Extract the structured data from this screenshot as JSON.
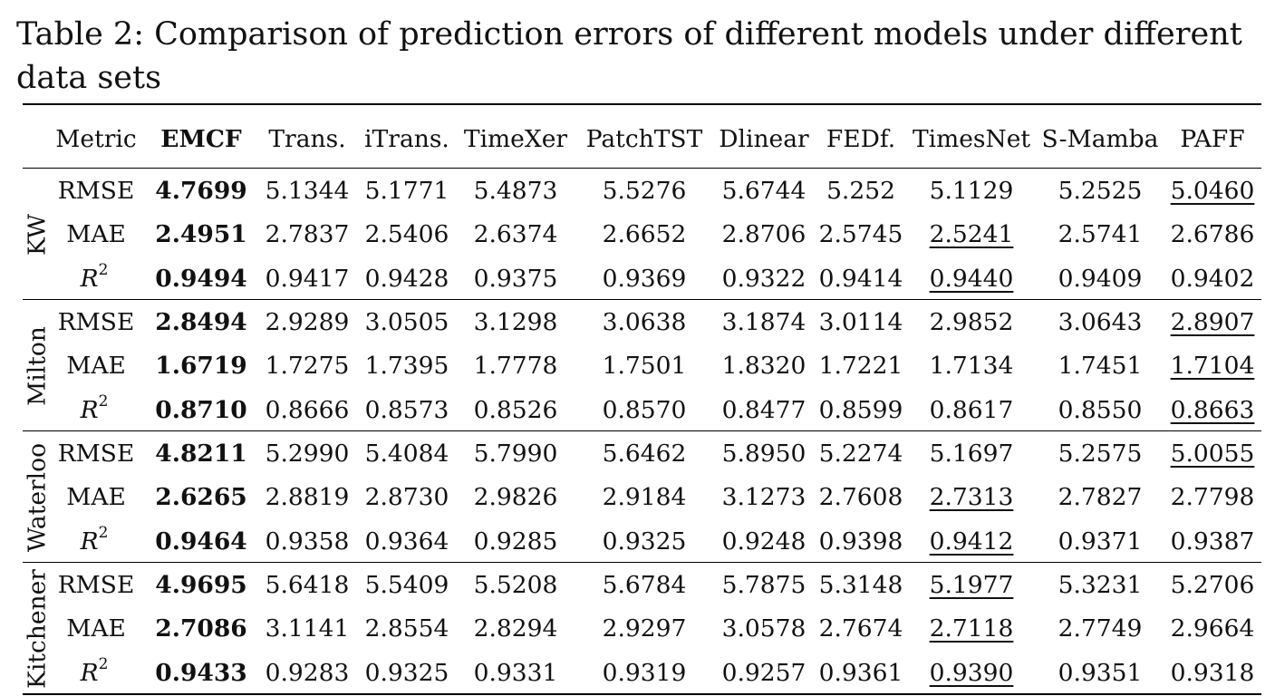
{
  "caption": "Table 2: Comparison of prediction errors of different models under different data sets",
  "table": {
    "metric_header": "Metric",
    "models": [
      "EMCF",
      "Trans.",
      "iTrans.",
      "TimeXer",
      "PatchTST",
      "Dlinear",
      "FEDf.",
      "TimesNet",
      "S-Mamba",
      "PAFF"
    ],
    "groups": [
      {
        "name": "KW",
        "rows": [
          {
            "metric": "RMSE",
            "values": [
              "4.7699",
              "5.1344",
              "5.1771",
              "5.4873",
              "5.5276",
              "5.6744",
              "5.252",
              "5.1129",
              "5.2525",
              "5.0460"
            ],
            "underline": 9
          },
          {
            "metric": "MAE",
            "values": [
              "2.4951",
              "2.7837",
              "2.5406",
              "2.6374",
              "2.6652",
              "2.8706",
              "2.5745",
              "2.5241",
              "2.5741",
              "2.6786"
            ],
            "underline": 7
          },
          {
            "metric": "R2",
            "values": [
              "0.9494",
              "0.9417",
              "0.9428",
              "0.9375",
              "0.9369",
              "0.9322",
              "0.9414",
              "0.9440",
              "0.9409",
              "0.9402"
            ],
            "underline": 7
          }
        ]
      },
      {
        "name": "Milton",
        "rows": [
          {
            "metric": "RMSE",
            "values": [
              "2.8494",
              "2.9289",
              "3.0505",
              "3.1298",
              "3.0638",
              "3.1874",
              "3.0114",
              "2.9852",
              "3.0643",
              "2.8907"
            ],
            "underline": 9
          },
          {
            "metric": "MAE",
            "values": [
              "1.6719",
              "1.7275",
              "1.7395",
              "1.7778",
              "1.7501",
              "1.8320",
              "1.7221",
              "1.7134",
              "1.7451",
              "1.7104"
            ],
            "underline": 9
          },
          {
            "metric": "R2",
            "values": [
              "0.8710",
              "0.8666",
              "0.8573",
              "0.8526",
              "0.8570",
              "0.8477",
              "0.8599",
              "0.8617",
              "0.8550",
              "0.8663"
            ],
            "underline": 9
          }
        ]
      },
      {
        "name": "Waterloo",
        "rows": [
          {
            "metric": "RMSE",
            "values": [
              "4.8211",
              "5.2990",
              "5.4084",
              "5.7990",
              "5.6462",
              "5.8950",
              "5.2274",
              "5.1697",
              "5.2575",
              "5.0055"
            ],
            "underline": 9
          },
          {
            "metric": "MAE",
            "values": [
              "2.6265",
              "2.8819",
              "2.8730",
              "2.9826",
              "2.9184",
              "3.1273",
              "2.7608",
              "2.7313",
              "2.7827",
              "2.7798"
            ],
            "underline": 7
          },
          {
            "metric": "R2",
            "values": [
              "0.9464",
              "0.9358",
              "0.9364",
              "0.9285",
              "0.9325",
              "0.9248",
              "0.9398",
              "0.9412",
              "0.9371",
              "0.9387"
            ],
            "underline": 7
          }
        ]
      },
      {
        "name": "Kitchener",
        "rows": [
          {
            "metric": "RMSE",
            "values": [
              "4.9695",
              "5.6418",
              "5.5409",
              "5.5208",
              "5.6784",
              "5.7875",
              "5.3148",
              "5.1977",
              "5.3231",
              "5.2706"
            ],
            "underline": 7
          },
          {
            "metric": "MAE",
            "values": [
              "2.7086",
              "3.1141",
              "2.8554",
              "2.8294",
              "2.9297",
              "3.0578",
              "2.7674",
              "2.7118",
              "2.7749",
              "2.9664"
            ],
            "underline": 7
          },
          {
            "metric": "R2",
            "values": [
              "0.9433",
              "0.9283",
              "0.9325",
              "0.9331",
              "0.9319",
              "0.9257",
              "0.9361",
              "0.9390",
              "0.9351",
              "0.9318"
            ],
            "underline": 7
          }
        ]
      }
    ]
  }
}
